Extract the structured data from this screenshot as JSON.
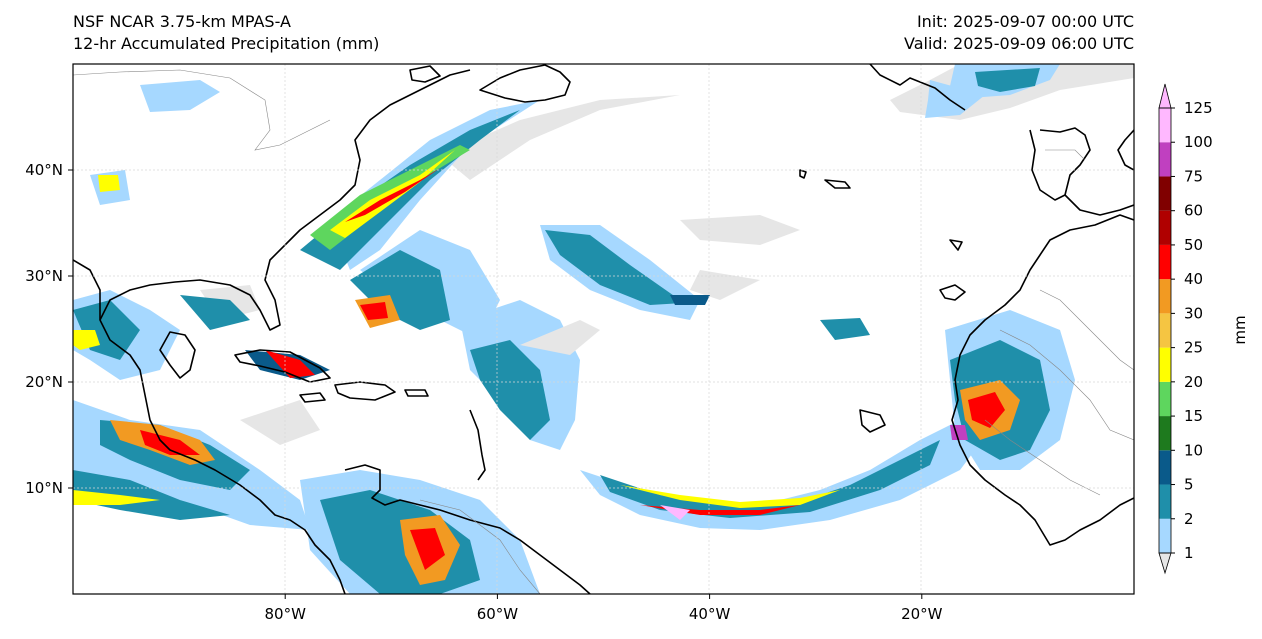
{
  "header": {
    "title_line1": "NSF NCAR 3.75-km MPAS-A",
    "title_line2": "12-hr Accumulated Precipitation (mm)",
    "init": "Init: 2025-09-07 00:00 UTC",
    "valid": "Valid: 2025-09-09 06:00 UTC"
  },
  "map": {
    "projection": "PlateCarree",
    "lon_range": [
      -100,
      0
    ],
    "lat_range": [
      0,
      50
    ],
    "lon_ticks": [
      {
        "lon": -80,
        "label": "80°W"
      },
      {
        "lon": -60,
        "label": "60°W"
      },
      {
        "lon": -40,
        "label": "40°W"
      },
      {
        "lon": -20,
        "label": "20°W"
      }
    ],
    "lat_ticks": [
      {
        "lat": 40,
        "label": "40°N"
      },
      {
        "lat": 30,
        "label": "30°N"
      },
      {
        "lat": 20,
        "label": "20°N"
      },
      {
        "lat": 10,
        "label": "10°N"
      }
    ],
    "gridlines": true
  },
  "colorbar": {
    "unit_label": "mm",
    "levels": [
      "1",
      "2",
      "5",
      "10",
      "15",
      "20",
      "25",
      "30",
      "40",
      "50",
      "60",
      "75",
      "100",
      "125"
    ],
    "colors": [
      "#e6e6e6",
      "#a6d8ff",
      "#1f8faa",
      "#0a5a8a",
      "#1e7a1e",
      "#5ed65e",
      "#ffff00",
      "#f5c542",
      "#f29a22",
      "#ff0000",
      "#b00000",
      "#800000",
      "#c040c0",
      "#ffb8ff"
    ],
    "extend": "both"
  }
}
